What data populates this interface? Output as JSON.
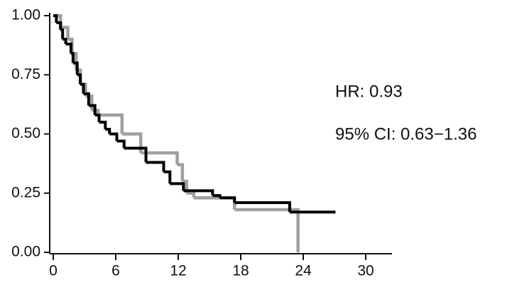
{
  "chart_data": {
    "type": "step",
    "xlim": [
      0,
      30
    ],
    "xticks": [
      0,
      6,
      12,
      18,
      24,
      30
    ],
    "ylim": [
      0,
      1
    ],
    "yticks": [
      {
        "value": 0,
        "label": "0.00"
      },
      {
        "value": 0.25,
        "label": "0.25"
      },
      {
        "value": 0.5,
        "label": "0.50"
      },
      {
        "value": 0.75,
        "label": "0.75"
      },
      {
        "value": 1,
        "label": "1.00"
      }
    ],
    "annotations": [
      "HR: 0.93",
      "95% CI: 0.63−1.36"
    ],
    "series": [
      {
        "color": "#a0a0a0",
        "x": [
          0,
          0.7,
          1.4,
          1.8,
          2.2,
          2.6,
          3.1,
          3.7,
          4.3,
          6.6,
          8.4,
          11.9,
          12.4,
          12.8,
          13.5,
          17.4,
          23.5
        ],
        "values": [
          1,
          0.95,
          0.9,
          0.84,
          0.77,
          0.71,
          0.66,
          0.6,
          0.58,
          0.5,
          0.42,
          0.37,
          0.3,
          0.25,
          0.23,
          0.18,
          0
        ]
      },
      {
        "color": "#000000",
        "x": [
          0,
          0.3,
          0.7,
          0.9,
          1.2,
          1.7,
          1.9,
          2.3,
          2.6,
          2.9,
          3.4,
          4,
          4.4,
          5,
          5.4,
          6.1,
          6.8,
          8.9,
          10.6,
          11.2,
          12.5,
          15.3,
          16,
          17.4,
          22.7,
          27.1
        ],
        "values": [
          1,
          0.97,
          0.94,
          0.9,
          0.88,
          0.84,
          0.8,
          0.75,
          0.71,
          0.67,
          0.62,
          0.58,
          0.55,
          0.52,
          0.5,
          0.47,
          0.44,
          0.38,
          0.34,
          0.29,
          0.26,
          0.24,
          0.23,
          0.21,
          0.17,
          0.17
        ]
      }
    ]
  }
}
